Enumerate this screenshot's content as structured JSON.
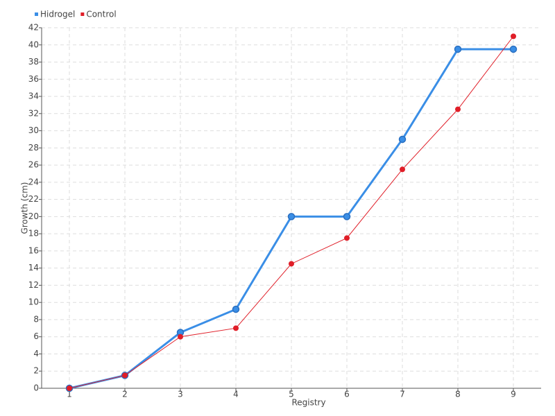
{
  "chart_data": {
    "type": "line",
    "x_label": "Registry",
    "y_label": "Growth (cm)",
    "categories": [
      "1",
      "2",
      "3",
      "4",
      "5",
      "6",
      "7",
      "8",
      "9"
    ],
    "series": [
      {
        "name": "Hidrogel",
        "color": "#3a8ee6",
        "values": [
          0,
          1.5,
          6.5,
          9.2,
          20,
          20,
          29,
          39.5,
          39.5
        ]
      },
      {
        "name": "Control",
        "color": "#e01e28",
        "values": [
          0,
          1.5,
          6,
          7,
          14.5,
          17.5,
          25.5,
          32.5,
          41
        ]
      }
    ],
    "ylim": [
      0,
      42
    ],
    "yticks": [
      0,
      2,
      4,
      6,
      8,
      10,
      12,
      14,
      16,
      18,
      20,
      22,
      24,
      26,
      28,
      30,
      32,
      34,
      36,
      38,
      40,
      42
    ],
    "grid": true,
    "legend": "top-left"
  }
}
